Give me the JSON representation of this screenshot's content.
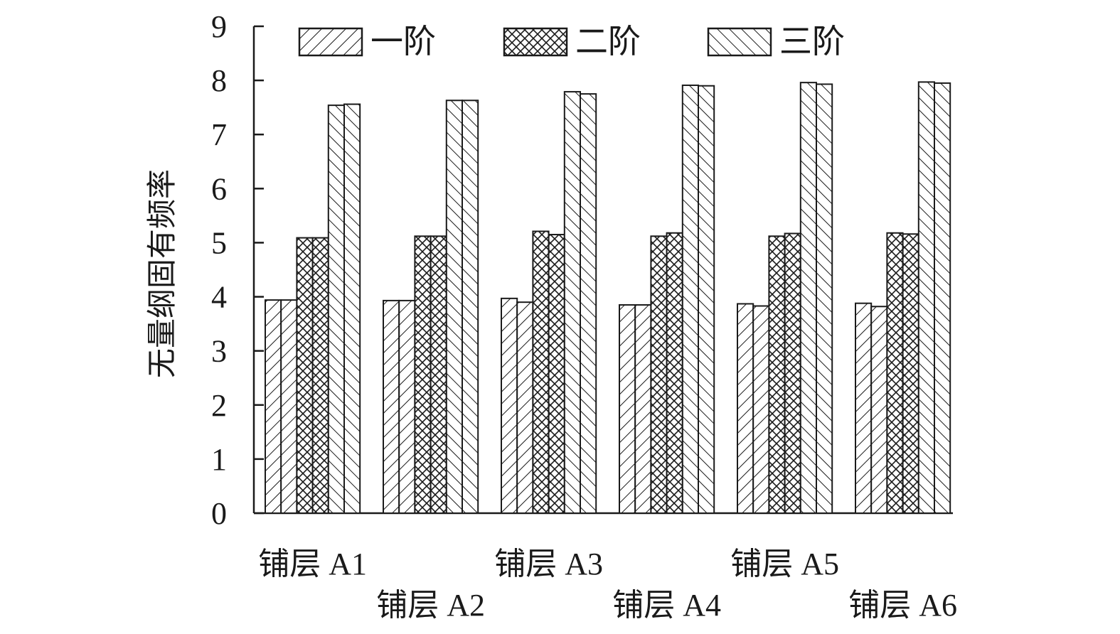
{
  "chart_data": {
    "type": "bar",
    "ylabel": "无量纲固有频率",
    "ylim": [
      0,
      9
    ],
    "yticks": [
      0,
      1,
      2,
      3,
      4,
      5,
      6,
      7,
      8,
      9
    ],
    "categories": [
      "铺层 A1",
      "铺层 A2",
      "铺层 A3",
      "铺层 A4",
      "铺层 A5",
      "铺层 A6"
    ],
    "series": [
      {
        "name": "一阶",
        "pattern": "diag-up",
        "values": [
          [
            3.94,
            3.94
          ],
          [
            3.93,
            3.93
          ],
          [
            3.97,
            3.9
          ],
          [
            3.85,
            3.85
          ],
          [
            3.87,
            3.83
          ],
          [
            3.88,
            3.82
          ]
        ]
      },
      {
        "name": "二阶",
        "pattern": "crosshatch",
        "values": [
          [
            5.09,
            5.09
          ],
          [
            5.12,
            5.12
          ],
          [
            5.21,
            5.15
          ],
          [
            5.12,
            5.18
          ],
          [
            5.12,
            5.17
          ],
          [
            5.18,
            5.16
          ]
        ]
      },
      {
        "name": "三阶",
        "pattern": "diag-down",
        "values": [
          [
            7.54,
            7.56
          ],
          [
            7.63,
            7.63
          ],
          [
            7.79,
            7.75
          ],
          [
            7.91,
            7.9
          ],
          [
            7.96,
            7.93
          ],
          [
            7.97,
            7.95
          ]
        ]
      }
    ],
    "legend_position": "top",
    "grid": false,
    "colors": {
      "stroke": "#1a1a1a",
      "background": "#ffffff"
    }
  }
}
